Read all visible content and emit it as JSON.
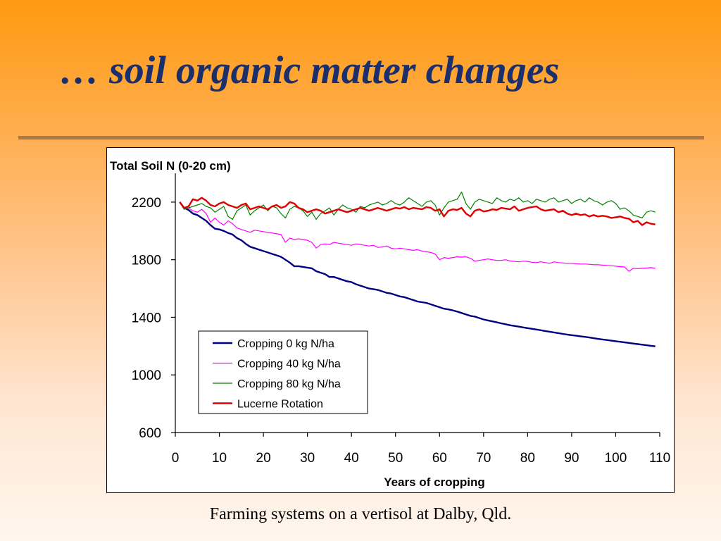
{
  "slide": {
    "title": "… soil organic matter changes",
    "caption": "Farming systems on a vertisol at  Dalby, Qld."
  },
  "colors": {
    "title": "#1a2f6b",
    "rule": "#a97a4c",
    "background_top": "#ff9a10",
    "background_bottom": "#fff6ee"
  },
  "chart_data": {
    "type": "line",
    "title": "",
    "ylabel": "Total Soil N (0-20 cm)",
    "xlabel": "Years of cropping",
    "xlim": [
      0,
      110
    ],
    "ylim": [
      600,
      2400
    ],
    "x_ticks": [
      0,
      10,
      20,
      30,
      40,
      50,
      60,
      70,
      80,
      90,
      100,
      110
    ],
    "y_ticks": [
      600,
      1000,
      1400,
      1800,
      2200
    ],
    "grid": false,
    "legend_position": "lower-left, inside plot",
    "x": [
      1,
      2,
      3,
      4,
      5,
      6,
      7,
      8,
      9,
      10,
      11,
      12,
      13,
      14,
      15,
      16,
      17,
      18,
      19,
      20,
      21,
      22,
      23,
      24,
      25,
      26,
      27,
      28,
      29,
      30,
      31,
      32,
      33,
      34,
      35,
      36,
      37,
      38,
      39,
      40,
      41,
      42,
      43,
      44,
      45,
      46,
      47,
      48,
      49,
      50,
      51,
      52,
      53,
      54,
      55,
      56,
      57,
      58,
      59,
      60,
      61,
      62,
      63,
      64,
      65,
      66,
      67,
      68,
      69,
      70,
      71,
      72,
      73,
      74,
      75,
      76,
      77,
      78,
      79,
      80,
      81,
      82,
      83,
      84,
      85,
      86,
      87,
      88,
      89,
      90,
      91,
      92,
      93,
      94,
      95,
      96,
      97,
      98,
      99,
      100,
      101,
      102,
      103,
      104,
      105,
      106,
      107,
      108,
      109
    ],
    "series": [
      {
        "name": "Cropping 0 kg N/ha",
        "color": "#000080",
        "width": 2.4,
        "values": [
          2200,
          2160,
          2145,
          2120,
          2110,
          2090,
          2070,
          2040,
          2015,
          2010,
          2000,
          1985,
          1975,
          1950,
          1935,
          1910,
          1890,
          1880,
          1870,
          1860,
          1850,
          1840,
          1830,
          1820,
          1800,
          1780,
          1755,
          1755,
          1750,
          1745,
          1740,
          1720,
          1710,
          1700,
          1680,
          1680,
          1670,
          1660,
          1650,
          1645,
          1630,
          1620,
          1610,
          1600,
          1595,
          1590,
          1580,
          1570,
          1565,
          1555,
          1545,
          1540,
          1530,
          1520,
          1510,
          1505,
          1500,
          1490,
          1480,
          1470,
          1460,
          1455,
          1448,
          1440,
          1430,
          1420,
          1410,
          1405,
          1395,
          1385,
          1378,
          1372,
          1365,
          1358,
          1352,
          1345,
          1340,
          1335,
          1330,
          1325,
          1320,
          1315,
          1310,
          1305,
          1300,
          1295,
          1290,
          1285,
          1280,
          1276,
          1272,
          1268,
          1264,
          1260,
          1255,
          1250,
          1246,
          1242,
          1238,
          1234,
          1230,
          1226,
          1222,
          1218,
          1214,
          1210,
          1206,
          1202,
          1198
        ]
      },
      {
        "name": "Cropping 40 kg N/ha",
        "color": "#ff00ff",
        "width": 1.2,
        "values": [
          2200,
          2150,
          2160,
          2140,
          2130,
          2150,
          2120,
          2060,
          2090,
          2060,
          2040,
          2070,
          2050,
          2020,
          2010,
          2000,
          1990,
          2005,
          2000,
          1995,
          1990,
          1985,
          1980,
          1975,
          1920,
          1950,
          1940,
          1945,
          1940,
          1935,
          1920,
          1880,
          1905,
          1910,
          1905,
          1920,
          1915,
          1910,
          1905,
          1900,
          1910,
          1905,
          1900,
          1895,
          1900,
          1885,
          1890,
          1895,
          1880,
          1875,
          1880,
          1875,
          1870,
          1865,
          1870,
          1860,
          1855,
          1850,
          1840,
          1800,
          1815,
          1810,
          1815,
          1820,
          1818,
          1820,
          1810,
          1790,
          1795,
          1800,
          1805,
          1800,
          1795,
          1795,
          1800,
          1792,
          1788,
          1785,
          1790,
          1788,
          1782,
          1780,
          1785,
          1780,
          1775,
          1785,
          1780,
          1778,
          1775,
          1775,
          1772,
          1770,
          1770,
          1768,
          1765,
          1765,
          1762,
          1760,
          1758,
          1755,
          1752,
          1750,
          1720,
          1740,
          1738,
          1740,
          1742,
          1745,
          1740
        ]
      },
      {
        "name": "Cropping 80 kg N/ha",
        "color": "#008000",
        "width": 1.2,
        "values": [
          2200,
          2150,
          2160,
          2170,
          2180,
          2190,
          2170,
          2160,
          2130,
          2150,
          2170,
          2100,
          2080,
          2140,
          2160,
          2180,
          2110,
          2140,
          2160,
          2180,
          2140,
          2170,
          2160,
          2120,
          2090,
          2150,
          2170,
          2160,
          2140,
          2100,
          2130,
          2080,
          2120,
          2140,
          2160,
          2110,
          2150,
          2180,
          2160,
          2150,
          2130,
          2170,
          2160,
          2180,
          2190,
          2200,
          2180,
          2190,
          2210,
          2190,
          2180,
          2200,
          2230,
          2210,
          2190,
          2170,
          2200,
          2210,
          2180,
          2110,
          2160,
          2200,
          2210,
          2220,
          2270,
          2190,
          2150,
          2200,
          2220,
          2210,
          2200,
          2190,
          2230,
          2210,
          2200,
          2220,
          2210,
          2230,
          2200,
          2210,
          2190,
          2220,
          2210,
          2200,
          2220,
          2230,
          2200,
          2210,
          2220,
          2190,
          2210,
          2220,
          2200,
          2230,
          2210,
          2200,
          2180,
          2200,
          2210,
          2190,
          2150,
          2160,
          2140,
          2110,
          2100,
          2090,
          2130,
          2140,
          2130
        ]
      },
      {
        "name": "Lucerne Rotation",
        "color": "#e00000",
        "width": 2.4,
        "values": [
          2200,
          2160,
          2170,
          2220,
          2210,
          2230,
          2210,
          2180,
          2170,
          2190,
          2200,
          2180,
          2170,
          2160,
          2180,
          2190,
          2150,
          2160,
          2170,
          2160,
          2150,
          2170,
          2180,
          2160,
          2170,
          2200,
          2190,
          2160,
          2150,
          2130,
          2140,
          2150,
          2140,
          2120,
          2130,
          2140,
          2150,
          2140,
          2130,
          2140,
          2150,
          2160,
          2150,
          2140,
          2150,
          2160,
          2150,
          2140,
          2150,
          2160,
          2155,
          2165,
          2150,
          2160,
          2155,
          2150,
          2165,
          2160,
          2140,
          2150,
          2100,
          2140,
          2150,
          2145,
          2160,
          2120,
          2100,
          2140,
          2150,
          2135,
          2140,
          2150,
          2145,
          2160,
          2155,
          2150,
          2170,
          2140,
          2150,
          2160,
          2165,
          2170,
          2150,
          2140,
          2145,
          2150,
          2130,
          2140,
          2120,
          2110,
          2120,
          2110,
          2115,
          2100,
          2110,
          2100,
          2105,
          2100,
          2090,
          2095,
          2100,
          2090,
          2085,
          2060,
          2070,
          2040,
          2060,
          2050,
          2045
        ]
      }
    ]
  }
}
